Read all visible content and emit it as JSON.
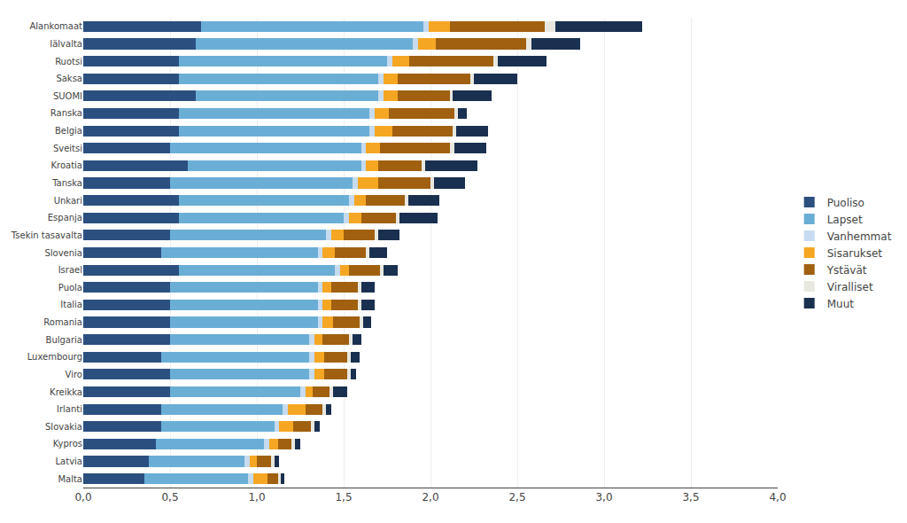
{
  "chart_data": {
    "type": "bar",
    "orientation": "horizontal",
    "stacked": true,
    "categories": [
      "Alankomaat",
      "Iälvalta",
      "Ruotsi",
      "Saksa",
      "SUOMI",
      "Ranska",
      "Belgia",
      "Sveitsi",
      "Kroatia",
      "Tanska",
      "Unkari",
      "Espanja",
      "Tsekin tasavalta",
      "Slovenia",
      "Israel",
      "Puola",
      "Italia",
      "Romania",
      "Bulgaria",
      "Luxembourg",
      "Viro",
      "Kreikka",
      "Irlanti",
      "Slovakia",
      "Kypros",
      "Latvia",
      "Malta"
    ],
    "series": [
      {
        "name": "Puoliso",
        "color": "#2b5080",
        "values": [
          0.68,
          0.65,
          0.55,
          0.55,
          0.65,
          0.55,
          0.55,
          0.5,
          0.6,
          0.5,
          0.55,
          0.55,
          0.5,
          0.45,
          0.55,
          0.5,
          0.5,
          0.5,
          0.5,
          0.45,
          0.5,
          0.5,
          0.45,
          0.45,
          0.42,
          0.38,
          0.35
        ]
      },
      {
        "name": "Lapset",
        "color": "#6aaed6",
        "values": [
          1.28,
          1.25,
          1.2,
          1.15,
          1.05,
          1.1,
          1.1,
          1.1,
          1.0,
          1.05,
          0.98,
          0.95,
          0.9,
          0.9,
          0.9,
          0.85,
          0.85,
          0.85,
          0.8,
          0.85,
          0.8,
          0.75,
          0.7,
          0.65,
          0.62,
          0.55,
          0.6
        ]
      },
      {
        "name": "Vanhemmat",
        "color": "#c6dbef",
        "values": [
          0.03,
          0.03,
          0.03,
          0.03,
          0.03,
          0.03,
          0.03,
          0.03,
          0.03,
          0.03,
          0.03,
          0.03,
          0.03,
          0.03,
          0.03,
          0.03,
          0.03,
          0.03,
          0.03,
          0.03,
          0.03,
          0.03,
          0.03,
          0.03,
          0.03,
          0.03,
          0.03
        ]
      },
      {
        "name": "Sisarukset",
        "color": "#f5a623",
        "values": [
          0.12,
          0.1,
          0.1,
          0.08,
          0.08,
          0.08,
          0.1,
          0.08,
          0.07,
          0.12,
          0.07,
          0.07,
          0.07,
          0.07,
          0.05,
          0.05,
          0.05,
          0.06,
          0.05,
          0.06,
          0.06,
          0.04,
          0.1,
          0.08,
          0.05,
          0.04,
          0.08
        ]
      },
      {
        "name": "Ystävät",
        "color": "#a06010",
        "values": [
          0.55,
          0.52,
          0.48,
          0.42,
          0.3,
          0.38,
          0.35,
          0.4,
          0.25,
          0.3,
          0.22,
          0.2,
          0.18,
          0.18,
          0.18,
          0.15,
          0.15,
          0.15,
          0.15,
          0.13,
          0.13,
          0.1,
          0.1,
          0.1,
          0.08,
          0.08,
          0.06
        ]
      },
      {
        "name": "Viralliset",
        "color": "#e8e8e0",
        "values": [
          0.06,
          0.03,
          0.03,
          0.02,
          0.02,
          0.02,
          0.02,
          0.03,
          0.02,
          0.02,
          0.02,
          0.02,
          0.02,
          0.02,
          0.02,
          0.02,
          0.02,
          0.02,
          0.02,
          0.02,
          0.02,
          0.02,
          0.02,
          0.02,
          0.02,
          0.02,
          0.02
        ]
      },
      {
        "name": "Muut",
        "color": "#1a3050",
        "values": [
          0.5,
          0.28,
          0.28,
          0.25,
          0.22,
          0.05,
          0.18,
          0.18,
          0.3,
          0.18,
          0.18,
          0.22,
          0.12,
          0.1,
          0.08,
          0.08,
          0.08,
          0.05,
          0.05,
          0.05,
          0.03,
          0.08,
          0.03,
          0.03,
          0.03,
          0.03,
          0.02
        ]
      }
    ],
    "xlim": [
      0,
      4.0
    ],
    "xticks": [
      {
        "value": 0.0,
        "label": "0,0"
      },
      {
        "value": 0.5,
        "label": "0,5"
      },
      {
        "value": 1.0,
        "label": "1,0"
      },
      {
        "value": 1.5,
        "label": "1,5"
      },
      {
        "value": 2.0,
        "label": "2,0"
      },
      {
        "value": 2.5,
        "label": "2,5"
      },
      {
        "value": 3.0,
        "label": "3,0"
      },
      {
        "value": 3.5,
        "label": "3,5"
      },
      {
        "value": 4.0,
        "label": "4,0"
      }
    ],
    "grid": true,
    "legend": "right"
  }
}
